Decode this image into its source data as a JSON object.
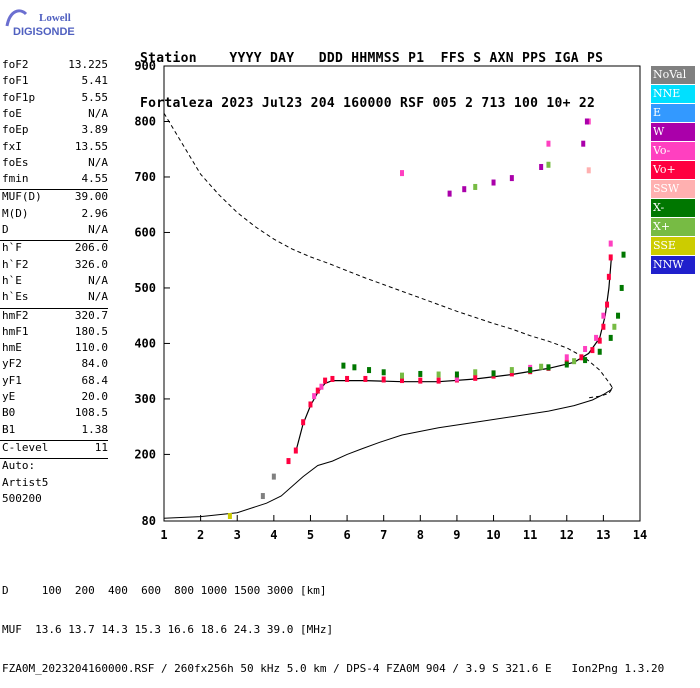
{
  "logo": {
    "line1": "Lowell",
    "line2": "DIGISONDE"
  },
  "header": {
    "line1": "Station    YYYY DAY   DDD HHMMSS P1  FFS S AXN PPS IGA PS",
    "line2": "Fortaleza 2023 Jul23 204 160000 RSF 005 2 713 100 10+ 22"
  },
  "params": [
    {
      "label": "foF2",
      "value": "13.225"
    },
    {
      "label": "foF1",
      "value": "5.41"
    },
    {
      "label": "foF1p",
      "value": "5.55"
    },
    {
      "label": "foE",
      "value": "N/A"
    },
    {
      "label": "foEp",
      "value": "3.89"
    },
    {
      "label": "fxI",
      "value": "13.55"
    },
    {
      "label": "foEs",
      "value": "N/A"
    },
    {
      "label": "fmin",
      "value": "4.55"
    },
    {
      "label": "MUF(D)",
      "value": "39.00"
    },
    {
      "label": "M(D)",
      "value": "2.96"
    },
    {
      "label": "D",
      "value": "N/A"
    },
    {
      "label": "h`F",
      "value": "206.0"
    },
    {
      "label": "h`F2",
      "value": "326.0"
    },
    {
      "label": "h`E",
      "value": "N/A"
    },
    {
      "label": "h`Es",
      "value": "N/A"
    },
    {
      "label": "hmF2",
      "value": "320.7"
    },
    {
      "label": "hmF1",
      "value": "180.5"
    },
    {
      "label": "hmE",
      "value": "110.0"
    },
    {
      "label": "yF2",
      "value": "84.0"
    },
    {
      "label": "yF1",
      "value": "68.4"
    },
    {
      "label": "yE",
      "value": "20.0"
    },
    {
      "label": "B0",
      "value": "108.5"
    },
    {
      "label": "B1",
      "value": "1.38"
    },
    {
      "label": "C-level",
      "value": "11"
    },
    {
      "label": "Auto:",
      "value": ""
    },
    {
      "label": "Artist5",
      "value": ""
    },
    {
      "label": "500200",
      "value": ""
    }
  ],
  "legend": [
    {
      "label": "NoVal",
      "color": "#808080"
    },
    {
      "label": "NNE",
      "color": "#00e0ff"
    },
    {
      "label": "E",
      "color": "#3399ff"
    },
    {
      "label": "W",
      "color": "#aa00aa"
    },
    {
      "label": "Vo-",
      "color": "#ff40c0"
    },
    {
      "label": "Vo+",
      "color": "#ff0040"
    },
    {
      "label": "SSW",
      "color": "#ffb0b0"
    },
    {
      "label": "X-",
      "color": "#007700"
    },
    {
      "label": "X+",
      "color": "#77bb44"
    },
    {
      "label": "SSE",
      "color": "#cccc00"
    },
    {
      "label": "NNW",
      "color": "#2020cc"
    }
  ],
  "footer": {
    "line1": "D     100  200  400  600  800 1000 1500 3000 [km]",
    "line2": "MUF  13.6 13.7 14.3 15.3 16.6 18.6 24.3 39.0 [MHz]",
    "line3": "FZA0M_2023204160000.RSF / 260fx256h 50 kHz 5.0 km / DPS-4 FZA0M 904 / 3.9 S 321.6 E   Ion2Png 1.3.20"
  },
  "chart_data": {
    "type": "scatter",
    "title": "",
    "xlabel": "",
    "ylabel": "",
    "xlim": [
      1,
      14
    ],
    "ylim": [
      80,
      900
    ],
    "xticks": [
      1,
      2,
      3,
      4,
      5,
      6,
      7,
      8,
      9,
      10,
      11,
      12,
      13,
      14
    ],
    "yticks": [
      80,
      200,
      300,
      400,
      500,
      600,
      700,
      800,
      900
    ],
    "grid": false,
    "legend_position": "right",
    "series": [
      {
        "name": "Vo+",
        "color": "#ff0040",
        "points": [
          [
            4.4,
            188
          ],
          [
            4.6,
            207
          ],
          [
            4.8,
            258
          ],
          [
            5.0,
            290
          ],
          [
            5.2,
            315
          ],
          [
            5.4,
            333
          ],
          [
            5.6,
            336
          ],
          [
            6.0,
            336
          ],
          [
            6.5,
            336
          ],
          [
            7.0,
            335
          ],
          [
            7.5,
            334
          ],
          [
            8.0,
            333
          ],
          [
            8.5,
            333
          ],
          [
            9.0,
            335
          ],
          [
            9.5,
            338
          ],
          [
            10.0,
            342
          ],
          [
            10.5,
            346
          ],
          [
            11.0,
            350
          ],
          [
            11.5,
            356
          ],
          [
            12.0,
            365
          ],
          [
            12.4,
            375
          ],
          [
            12.7,
            388
          ],
          [
            12.9,
            405
          ],
          [
            13.0,
            430
          ],
          [
            13.1,
            470
          ],
          [
            13.15,
            520
          ],
          [
            13.2,
            555
          ]
        ]
      },
      {
        "name": "Vo-",
        "color": "#ff40c0",
        "points": [
          [
            5.1,
            305
          ],
          [
            5.3,
            322
          ],
          [
            9.0,
            337
          ],
          [
            10.0,
            346
          ],
          [
            11.0,
            356
          ],
          [
            12.0,
            375
          ],
          [
            12.5,
            390
          ],
          [
            12.8,
            410
          ],
          [
            13.0,
            450
          ],
          [
            13.2,
            580
          ],
          [
            12.6,
            800
          ],
          [
            11.5,
            760
          ],
          [
            7.5,
            707
          ]
        ]
      },
      {
        "name": "X-",
        "color": "#007700",
        "points": [
          [
            5.9,
            360
          ],
          [
            6.2,
            357
          ],
          [
            6.6,
            352
          ],
          [
            7.0,
            348
          ],
          [
            8.0,
            345
          ],
          [
            9.0,
            344
          ],
          [
            10.0,
            346
          ],
          [
            11.0,
            352
          ],
          [
            11.5,
            357
          ],
          [
            12.0,
            362
          ],
          [
            12.5,
            370
          ],
          [
            12.9,
            385
          ],
          [
            13.2,
            410
          ],
          [
            13.4,
            450
          ],
          [
            13.5,
            500
          ],
          [
            13.55,
            560
          ]
        ]
      },
      {
        "name": "X+",
        "color": "#77bb44",
        "points": [
          [
            7.5,
            342
          ],
          [
            8.5,
            344
          ],
          [
            9.5,
            348
          ],
          [
            10.5,
            352
          ],
          [
            11.3,
            358
          ],
          [
            12.2,
            368
          ],
          [
            13.3,
            430
          ],
          [
            11.5,
            722
          ],
          [
            9.5,
            682
          ]
        ]
      },
      {
        "name": "W",
        "color": "#aa00aa",
        "points": [
          [
            8.8,
            670
          ],
          [
            9.2,
            678
          ],
          [
            10.0,
            690
          ],
          [
            10.5,
            698
          ],
          [
            11.3,
            718
          ],
          [
            12.45,
            760
          ],
          [
            12.55,
            800
          ]
        ]
      },
      {
        "name": "SSW",
        "color": "#ffb0b0",
        "points": [
          [
            12.6,
            712
          ]
        ]
      },
      {
        "name": "SSE",
        "color": "#cccc00",
        "points": [
          [
            2.8,
            89
          ]
        ]
      },
      {
        "name": "NoVal",
        "color": "#808080",
        "points": [
          [
            3.7,
            125
          ],
          [
            4.0,
            160
          ]
        ]
      }
    ],
    "profile_line": {
      "name": "true height profile",
      "style": "solid",
      "points": [
        [
          1.0,
          85
        ],
        [
          2.0,
          88
        ],
        [
          3.0,
          95
        ],
        [
          3.8,
          112
        ],
        [
          4.2,
          125
        ],
        [
          4.8,
          160
        ],
        [
          5.2,
          180
        ],
        [
          5.6,
          188
        ],
        [
          6.0,
          200
        ],
        [
          6.4,
          210
        ],
        [
          6.9,
          222
        ],
        [
          7.5,
          235
        ],
        [
          8.5,
          248
        ],
        [
          9.5,
          258
        ],
        [
          10.5,
          268
        ],
        [
          11.5,
          278
        ],
        [
          12.2,
          288
        ],
        [
          12.7,
          298
        ],
        [
          13.0,
          308
        ],
        [
          13.2,
          316
        ],
        [
          13.25,
          320.7
        ]
      ]
    },
    "trace_line": {
      "name": "O-trace fit",
      "style": "solid",
      "points": [
        [
          4.6,
          205
        ],
        [
          4.8,
          255
        ],
        [
          5.0,
          288
        ],
        [
          5.2,
          312
        ],
        [
          5.4,
          328
        ],
        [
          5.6,
          333
        ],
        [
          6.5,
          333
        ],
        [
          7.5,
          331
        ],
        [
          8.5,
          331
        ],
        [
          9.5,
          336
        ],
        [
          10.5,
          344
        ],
        [
          11.5,
          355
        ],
        [
          12.2,
          366
        ],
        [
          12.6,
          382
        ],
        [
          12.9,
          410
        ],
        [
          13.05,
          450
        ],
        [
          13.15,
          500
        ],
        [
          13.22,
          555
        ]
      ]
    },
    "muf_curve": {
      "name": "MUF curve",
      "style": "dashed",
      "points": [
        [
          1.0,
          815
        ],
        [
          1.5,
          760
        ],
        [
          2.0,
          705
        ],
        [
          2.5,
          668
        ],
        [
          3.0,
          636
        ],
        [
          3.5,
          610
        ],
        [
          4.0,
          588
        ],
        [
          4.5,
          570
        ],
        [
          5.0,
          556
        ],
        [
          5.5,
          544
        ],
        [
          6.0,
          531
        ],
        [
          6.5,
          518
        ],
        [
          7.0,
          506
        ],
        [
          7.5,
          494
        ],
        [
          8.0,
          482
        ],
        [
          8.5,
          470
        ],
        [
          9.0,
          458
        ],
        [
          9.5,
          447
        ],
        [
          10.0,
          436
        ],
        [
          10.5,
          426
        ],
        [
          11.0,
          414
        ],
        [
          11.5,
          404
        ],
        [
          12.0,
          392
        ],
        [
          12.5,
          374
        ],
        [
          12.9,
          352
        ],
        [
          13.15,
          330
        ],
        [
          13.25,
          320
        ],
        [
          13.15,
          310
        ],
        [
          12.9,
          305
        ],
        [
          12.6,
          302
        ]
      ]
    }
  }
}
